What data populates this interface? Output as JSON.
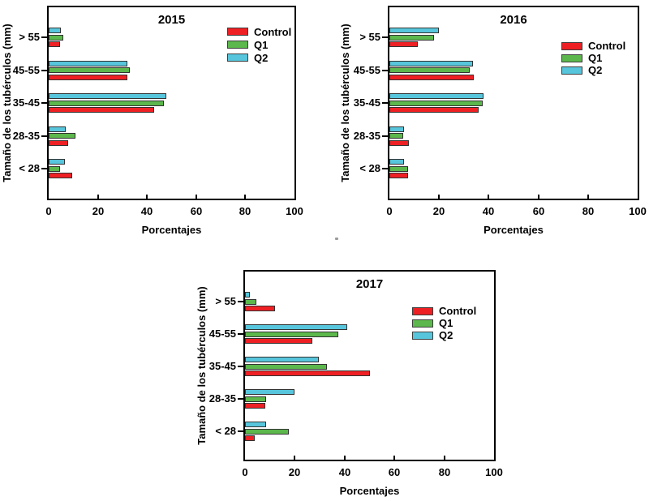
{
  "page": {
    "background": "#ffffff"
  },
  "chart_data": [
    {
      "type": "bar",
      "orientation": "horizontal",
      "title": "2015",
      "xlabel": "Porcentajes",
      "ylabel": "Tamaño de los tubérculos (mm)",
      "categories": [
        "> 55",
        "45-55",
        "35-45",
        "28-35",
        "< 28"
      ],
      "series": [
        {
          "name": "Control",
          "color": "#EE2024",
          "values": [
            4.5,
            32,
            43,
            8,
            9.5
          ]
        },
        {
          "name": "Q1",
          "color": "#5CB84C",
          "values": [
            6,
            33,
            47,
            11,
            4.5
          ]
        },
        {
          "name": "Q2",
          "color": "#57C6DC",
          "values": [
            5,
            32,
            48,
            7,
            6.5
          ]
        }
      ],
      "xlim": [
        0,
        100
      ],
      "xticks": [
        0,
        20,
        40,
        60,
        80,
        100
      ],
      "legend_position": "upper right",
      "grid": false
    },
    {
      "type": "bar",
      "orientation": "horizontal",
      "title": "2016",
      "xlabel": "Porcentajes",
      "ylabel": "Tamaño de los tubérculos (mm)",
      "categories": [
        "> 55",
        "45-55",
        "35-45",
        "28-35",
        "< 28"
      ],
      "series": [
        {
          "name": "Control",
          "color": "#EE2024",
          "values": [
            11.5,
            34,
            36,
            8,
            7.5
          ]
        },
        {
          "name": "Q1",
          "color": "#5CB84C",
          "values": [
            18,
            32.5,
            37.5,
            5.5,
            7.5
          ]
        },
        {
          "name": "Q2",
          "color": "#57C6DC",
          "values": [
            20,
            33.5,
            38,
            6,
            6
          ]
        }
      ],
      "xlim": [
        0,
        100
      ],
      "xticks": [
        0,
        20,
        40,
        60,
        80,
        100
      ],
      "legend_position": "upper right",
      "grid": false
    },
    {
      "type": "bar",
      "orientation": "horizontal",
      "title": "2017",
      "xlabel": "Porcentajes",
      "ylabel": "Tamaño de los tubérculos (mm)",
      "categories": [
        "> 55",
        "45-55",
        "35-45",
        "28-35",
        "< 28"
      ],
      "series": [
        {
          "name": "Control",
          "color": "#EE2024",
          "values": [
            12,
            27,
            50,
            8,
            4
          ]
        },
        {
          "name": "Q1",
          "color": "#5CB84C",
          "values": [
            4.5,
            37.5,
            33,
            8.5,
            17.5
          ]
        },
        {
          "name": "Q2",
          "color": "#57C6DC",
          "values": [
            2,
            41,
            29.5,
            20,
            8.5
          ]
        }
      ],
      "xlim": [
        0,
        100
      ],
      "xticks": [
        0,
        20,
        40,
        60,
        80,
        100
      ],
      "legend_position": "upper right",
      "grid": false
    }
  ]
}
